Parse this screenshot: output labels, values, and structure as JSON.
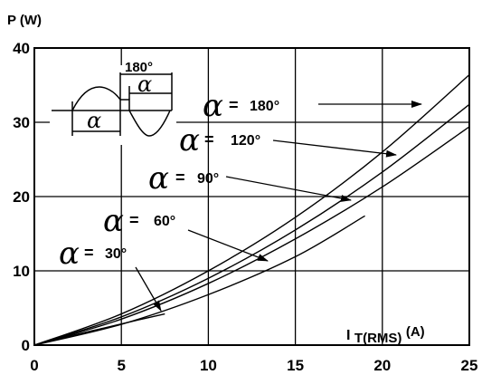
{
  "chart_data": {
    "type": "line",
    "ylabel": "P (W)",
    "xlabel_main": "I",
    "xlabel_sub": "T(RMS)",
    "xlabel_unit": "(A)",
    "xlim": [
      0,
      25
    ],
    "ylim": [
      0,
      40
    ],
    "x_ticks": [
      "0",
      "5",
      "10",
      "15",
      "20",
      "25"
    ],
    "y_ticks": [
      "0",
      "10",
      "20",
      "30",
      "40"
    ],
    "grid": true,
    "series": [
      {
        "name": "α= 30°",
        "x": [
          0,
          2,
          4,
          6,
          7.5
        ],
        "y": [
          0,
          1.2,
          2.3,
          3.4,
          4.2
        ]
      },
      {
        "name": "α= 60°",
        "x": [
          0,
          5,
          10,
          15,
          19
        ],
        "y": [
          0,
          2.8,
          6.8,
          11.9,
          17.4
        ]
      },
      {
        "name": "α= 90°",
        "x": [
          0,
          5,
          10,
          15,
          20,
          25
        ],
        "y": [
          0,
          3.5,
          8.3,
          14.3,
          21.3,
          29.4
        ]
      },
      {
        "name": "α= 120°",
        "x": [
          0,
          5,
          10,
          15,
          20,
          25
        ],
        "y": [
          0,
          3.8,
          9.0,
          15.5,
          23.3,
          32.4
        ]
      },
      {
        "name": "α= 180°",
        "x": [
          0,
          5,
          10,
          15,
          20,
          25
        ],
        "y": [
          0,
          4.2,
          10.0,
          17.2,
          26.0,
          36.4
        ]
      }
    ],
    "annotations": [
      {
        "alpha": "α",
        "eq": "=",
        "value": "180°",
        "arrow_to": [
          22,
          32.7
        ]
      },
      {
        "alpha": "α",
        "eq": "=",
        "value": "120°",
        "arrow_to": [
          20.8,
          25.7
        ]
      },
      {
        "alpha": "α",
        "eq": "=",
        "value": "90°",
        "arrow_to": [
          18.2,
          19.5
        ]
      },
      {
        "alpha": "α",
        "eq": "=",
        "value": "60°",
        "arrow_to": [
          13.2,
          11.5
        ]
      },
      {
        "alpha": "α",
        "eq": "=",
        "value": "30°",
        "arrow_to": [
          7.2,
          4.4
        ]
      }
    ],
    "inset": {
      "description": "sine waveform with conduction angle",
      "label_180": "180°",
      "label_alpha_top": "α",
      "label_alpha_bottom": "α"
    }
  }
}
